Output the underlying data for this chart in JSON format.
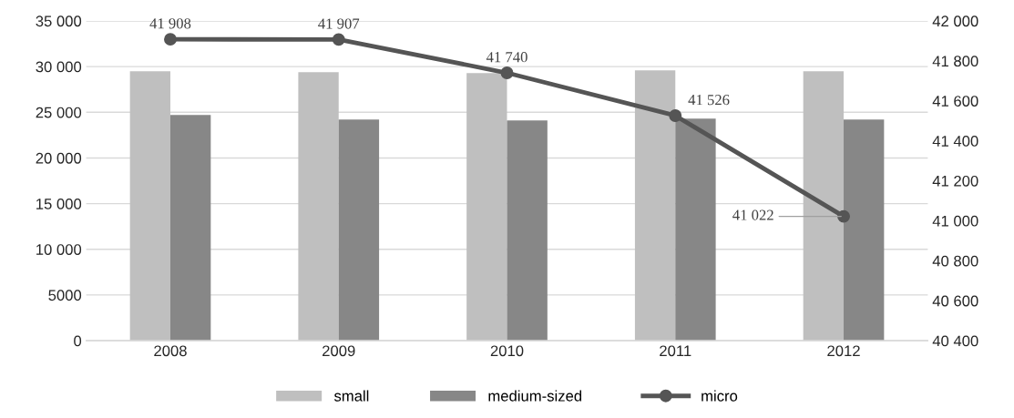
{
  "chart_data": {
    "type": "bar",
    "categories": [
      "2008",
      "2009",
      "2010",
      "2011",
      "2012"
    ],
    "series": [
      {
        "name": "small",
        "color": "#bfbfbf",
        "values": [
          29500,
          29400,
          29300,
          29600,
          29500
        ]
      },
      {
        "name": "medium-sized",
        "color": "#878787",
        "values": [
          24700,
          24200,
          24100,
          24300,
          24200
        ]
      },
      {
        "name": "micro",
        "color": "#555555",
        "type": "line",
        "axis": "y2",
        "marker": "circle",
        "values": [
          41908,
          41907,
          41740,
          41526,
          41022
        ],
        "value_labels": [
          "41 908",
          "41 907",
          "41 740",
          "41 526",
          "41 022"
        ]
      }
    ],
    "ylim": [
      0,
      35000
    ],
    "yticks": [
      0,
      {
        "value": 5000,
        "label": "5000"
      },
      {
        "value": 10000,
        "label": "10 000"
      },
      {
        "value": 15000,
        "label": "15 000"
      },
      {
        "value": 20000,
        "label": "20 000"
      },
      {
        "value": 25000,
        "label": "25 000"
      },
      {
        "value": 30000,
        "label": "30 000"
      },
      {
        "value": 35000,
        "label": "35 000"
      }
    ],
    "y2lim": [
      40400,
      42000
    ],
    "y2ticks": [
      {
        "value": 40400,
        "label": "40 400"
      },
      {
        "value": 40600,
        "label": "40 600"
      },
      {
        "value": 40800,
        "label": "40 800"
      },
      {
        "value": 41000,
        "label": "41 000"
      },
      {
        "value": 41200,
        "label": "41 200"
      },
      {
        "value": 41400,
        "label": "41 400"
      },
      {
        "value": 41600,
        "label": "41 600"
      },
      {
        "value": 41800,
        "label": "41 800"
      },
      {
        "value": 42000,
        "label": "42 000"
      }
    ],
    "grid": "y",
    "legend": "bottom"
  }
}
